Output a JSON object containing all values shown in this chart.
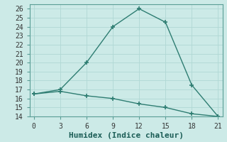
{
  "xlabel": "Humidex (Indice chaleur)",
  "bg_color": "#cceae7",
  "line_color": "#2e7d72",
  "grid_color": "#b0d8d4",
  "line1_x": [
    0,
    3,
    6,
    9,
    12,
    15,
    18,
    21
  ],
  "line1_y": [
    16.5,
    17.0,
    20.0,
    24.0,
    26.0,
    24.5,
    17.5,
    14.0
  ],
  "line2_x": [
    0,
    3,
    6,
    9,
    12,
    15,
    18,
    21
  ],
  "line2_y": [
    16.5,
    16.8,
    16.3,
    16.0,
    15.4,
    15.0,
    14.3,
    14.0
  ],
  "xlim": [
    -0.5,
    21.5
  ],
  "ylim": [
    14,
    26.5
  ],
  "xticks": [
    0,
    3,
    6,
    9,
    12,
    15,
    18,
    21
  ],
  "yticks": [
    14,
    15,
    16,
    17,
    18,
    19,
    20,
    21,
    22,
    23,
    24,
    25,
    26
  ],
  "marker": "+",
  "markersize": 4,
  "markeredgewidth": 1.2,
  "linewidth": 1.0,
  "xlabel_fontsize": 8,
  "tick_fontsize": 7,
  "spine_color": "#5a9e96",
  "tick_color": "#5a9e96"
}
